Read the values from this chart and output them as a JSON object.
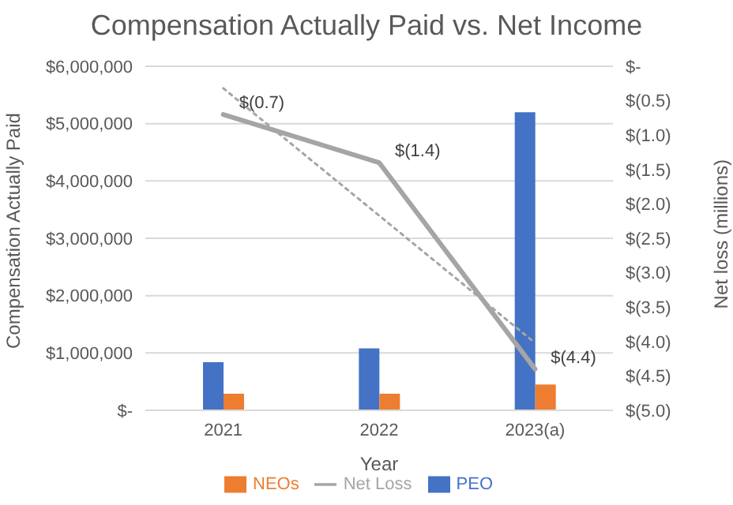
{
  "chart_data": {
    "type": "bar",
    "title": "Compensation Actually Paid vs. Net Income",
    "xlabel": "Year",
    "ylabel": "Compensation Actually Paid",
    "y2label": "Net loss (millions)",
    "categories": [
      "2021",
      "2022",
      "2023(a)"
    ],
    "series": [
      {
        "name": "PEO",
        "color": "#4472c4",
        "values": [
          840000,
          1080000,
          5200000
        ]
      },
      {
        "name": "NEOs",
        "color": "#ed7d31",
        "values": [
          290000,
          290000,
          450000
        ]
      },
      {
        "name": "Net Loss",
        "type": "line",
        "axis": "y2",
        "color": "#a5a5a5",
        "values": [
          -0.7,
          -1.4,
          -4.4
        ],
        "value_labels": [
          "$(0.7)",
          "$(1.4)",
          "$(4.4)"
        ],
        "line_style": "solid"
      },
      {
        "type": "line",
        "axis": "y2",
        "color": "#a5a5a5",
        "values": [
          -0.32,
          -2.17,
          -4.02
        ],
        "line_style": "dotted"
      }
    ],
    "ylim": [
      0,
      6000000
    ],
    "yticks": [
      {
        "value": 0,
        "label": "$-"
      },
      {
        "value": 1000000,
        "label": "$1,000,000"
      },
      {
        "value": 2000000,
        "label": "$2,000,000"
      },
      {
        "value": 3000000,
        "label": "$3,000,000"
      },
      {
        "value": 4000000,
        "label": "$4,000,000"
      },
      {
        "value": 5000000,
        "label": "$5,000,000"
      },
      {
        "value": 6000000,
        "label": "$6,000,000"
      }
    ],
    "y2lim": [
      -5,
      0
    ],
    "y2ticks": [
      {
        "value": 0,
        "label": "$-"
      },
      {
        "value": -0.5,
        "label": "$(0.5)"
      },
      {
        "value": -1,
        "label": "$(1.0)"
      },
      {
        "value": -1.5,
        "label": "$(1.5)"
      },
      {
        "value": -2,
        "label": "$(2.0)"
      },
      {
        "value": -2.5,
        "label": "$(2.5)"
      },
      {
        "value": -3,
        "label": "$(3.0)"
      },
      {
        "value": -3.5,
        "label": "$(3.5)"
      },
      {
        "value": -4,
        "label": "$(4.0)"
      },
      {
        "value": -4.5,
        "label": "$(4.5)"
      },
      {
        "value": -5,
        "label": "$(5.0)"
      }
    ],
    "grid": "y",
    "legend": "bottom",
    "marker": "none"
  }
}
